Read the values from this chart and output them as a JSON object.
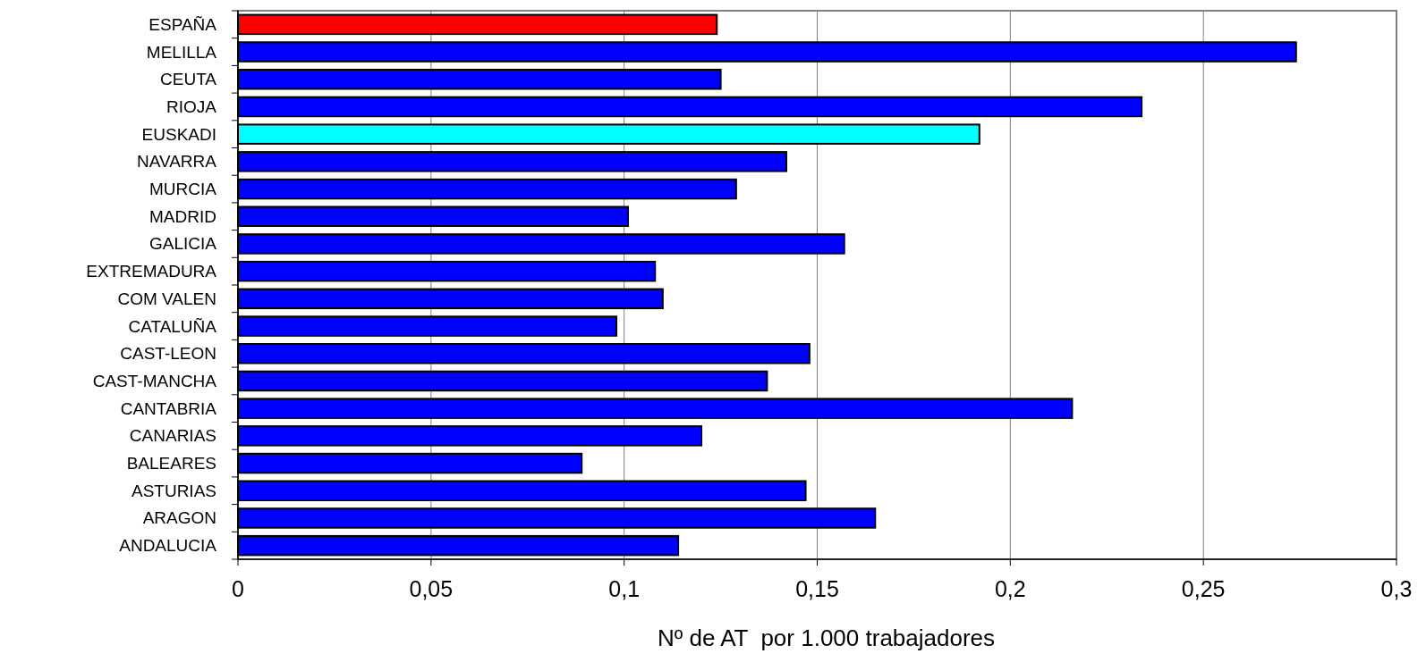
{
  "chart_data": {
    "type": "bar",
    "orientation": "horizontal",
    "xlabel": "Nº de AT  por 1.000 trabajadores",
    "categories": [
      "ESPAÑA",
      "MELILLA",
      "CEUTA",
      "RIOJA",
      "EUSKADI",
      "NAVARRA",
      "MURCIA",
      "MADRID",
      "GALICIA",
      "EXTREMADURA",
      "COM VALEN",
      "CATALUÑA",
      "CAST-LEON",
      "CAST-MANCHA",
      "CANTABRIA",
      "CANARIAS",
      "BALEARES",
      "ASTURIAS",
      "ARAGON",
      "ANDALUCIA"
    ],
    "values": [
      0.124,
      0.274,
      0.125,
      0.234,
      0.192,
      0.142,
      0.129,
      0.101,
      0.157,
      0.108,
      0.11,
      0.098,
      0.148,
      0.137,
      0.216,
      0.12,
      0.089,
      0.147,
      0.165,
      0.114
    ],
    "colors": [
      "#ff0000",
      "#0000ff",
      "#0000ff",
      "#0000ff",
      "#00ffff",
      "#0000ff",
      "#0000ff",
      "#0000ff",
      "#0000ff",
      "#0000ff",
      "#0000ff",
      "#0000ff",
      "#0000ff",
      "#0000ff",
      "#0000ff",
      "#0000ff",
      "#0000ff",
      "#0000ff",
      "#0000ff",
      "#0000ff"
    ],
    "xlim": [
      0,
      0.3
    ],
    "xticks": [
      0,
      {
        "value": 0.05,
        "label": "0,05"
      },
      {
        "value": 0.1,
        "label": "0,1"
      },
      {
        "value": 0.15,
        "label": "0,15"
      },
      {
        "value": 0.2,
        "label": "0,2"
      },
      {
        "value": 0.25,
        "label": "0,25"
      },
      {
        "value": 0.3,
        "label": "0,3"
      }
    ],
    "grid": "x"
  }
}
